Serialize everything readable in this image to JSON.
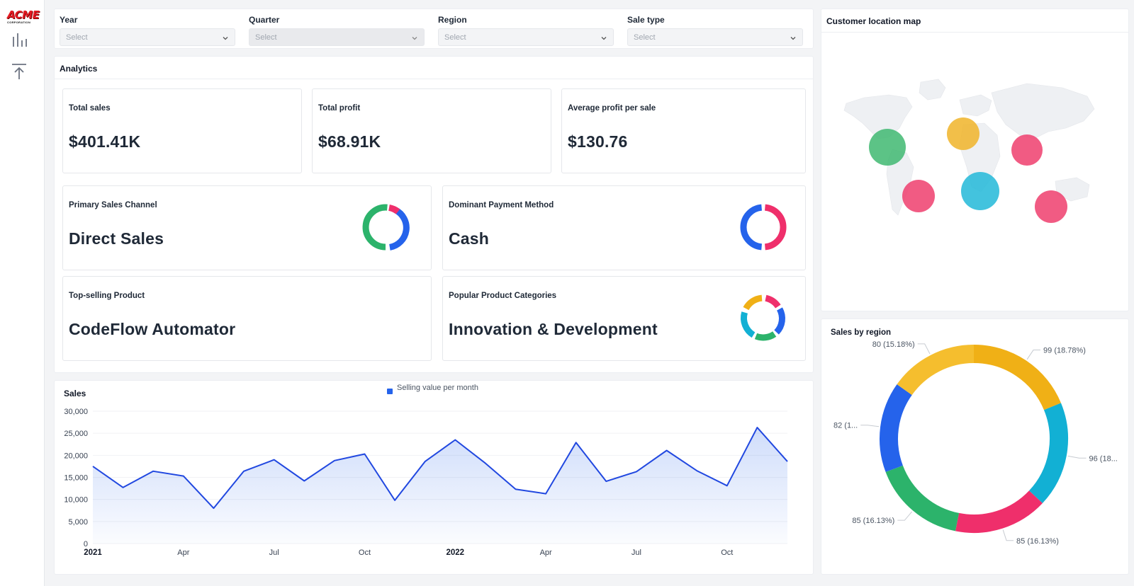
{
  "brand": {
    "logo_text": "ACME",
    "logo_sub": "CORPORATION"
  },
  "filters": [
    {
      "label": "Year",
      "placeholder": "Select",
      "disabled": false
    },
    {
      "label": "Quarter",
      "placeholder": "Select",
      "disabled": true
    },
    {
      "label": "Region",
      "placeholder": "Select",
      "disabled": false
    },
    {
      "label": "Sale type",
      "placeholder": "Select",
      "disabled": false
    }
  ],
  "analytics": {
    "title": "Analytics",
    "kpis": [
      {
        "label": "Total sales",
        "value": "$401.41K"
      },
      {
        "label": "Total profit",
        "value": "$68.91K"
      },
      {
        "label": "Average profit per sale",
        "value": "$130.76"
      }
    ],
    "highlights": [
      {
        "label": "Primary Sales Channel",
        "value": "Direct Sales"
      },
      {
        "label": "Dominant Payment Method",
        "value": "Cash"
      },
      {
        "label": "Top-selling Product",
        "value": "CodeFlow Automator"
      },
      {
        "label": "Popular Product Categories",
        "value": "Innovation & Development"
      }
    ]
  },
  "map": {
    "title": "Customer location map",
    "colors": {
      "green": "#3fb871",
      "amber": "#f0b429",
      "pink": "#ef3e6d",
      "cyan": "#22b8d8"
    }
  },
  "colors": {
    "blue": "#2563eb",
    "green": "#2cb36b",
    "pink": "#ef2f6b",
    "amber": "#f0b016",
    "cyan": "#12b0d4",
    "yellow": "#f5be2e"
  },
  "chart_data": [
    {
      "type": "area",
      "title": "Sales",
      "legend": "Selling value per month",
      "ylim": [
        0,
        30000
      ],
      "y_ticks": [
        "30,000",
        "25,000",
        "20,000",
        "15,000",
        "10,000",
        "5,000",
        "0"
      ],
      "x_ticks": [
        "2021",
        "Apr",
        "Jul",
        "Oct",
        "2022",
        "Apr",
        "Jul",
        "Oct"
      ],
      "series": [
        {
          "values": [
            17500,
            12700,
            16400,
            15300,
            8000,
            16400,
            19000,
            14200,
            18800,
            20300,
            9800,
            18600,
            23500,
            18200,
            12300,
            11300,
            22900,
            14100,
            16300,
            21100,
            16500,
            13100,
            26300,
            18600
          ]
        }
      ]
    },
    {
      "type": "pie",
      "title": "Sales by region",
      "slices": [
        {
          "value": 99,
          "label": "99 (18.78%)"
        },
        {
          "value": 96,
          "label": "96 (18..."
        },
        {
          "value": 85,
          "label": "85 (16.13%)"
        },
        {
          "value": 85,
          "label": "85 (16.13%)"
        },
        {
          "value": 82,
          "label": "82 (1..."
        },
        {
          "value": 80,
          "label": "80 (15.18%)"
        }
      ]
    }
  ]
}
